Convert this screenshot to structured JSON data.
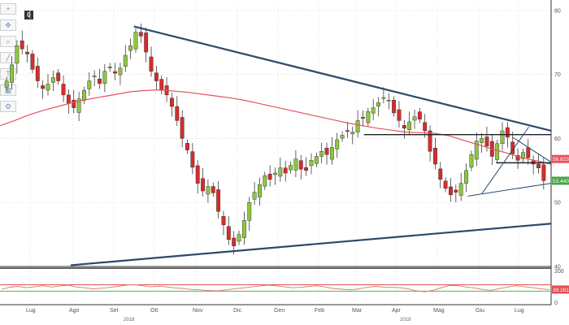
{
  "toolbar": {
    "tools": [
      "crosshair-icon",
      "pan-icon",
      "zoom-icon",
      "draw-icon",
      "text-icon",
      "grid-icon",
      "settings-icon"
    ],
    "badge": "0"
  },
  "chart_data": [
    {
      "type": "candlestick",
      "name": "main-price-chart",
      "x_ticks": [
        "Lug",
        "Ago",
        "Set",
        "Ott",
        "Nov",
        "Dic",
        "Gen",
        "Feb",
        "Mar",
        "Apr",
        "Mag",
        "Giu",
        "Lug"
      ],
      "year_labels": [
        "2018",
        "2019"
      ],
      "y_ticks": [
        40,
        50,
        60,
        70,
        80
      ],
      "ylim": [
        40,
        81
      ],
      "grid": true,
      "closes": [
        69.0,
        71.5,
        74.5,
        74.0,
        73.2,
        70.8,
        69.0,
        67.8,
        68.5,
        69.5,
        69.0,
        66.8,
        65.5,
        64.8,
        66.2,
        67.5,
        69.0,
        69.8,
        68.6,
        70.5,
        71.2,
        70.2,
        71.0,
        73.0,
        74.5,
        76.6,
        76.0,
        73.5,
        70.5,
        69.0,
        67.5,
        66.8,
        65.0,
        62.8,
        60.0,
        58.2,
        55.5,
        53.0,
        51.8,
        52.5,
        51.5,
        48.6,
        46.5,
        44.2,
        43.2,
        45.0,
        47.2,
        50.0,
        51.6,
        52.8,
        54.2,
        53.6,
        54.6,
        55.4,
        54.6,
        55.8,
        56.8,
        55.2,
        55.0,
        56.6,
        57.2,
        58.0,
        57.5,
        58.6,
        59.8,
        60.5,
        61.2,
        61.0,
        62.8,
        63.2,
        64.2,
        64.8,
        65.6,
        66.4,
        66.0,
        64.0,
        62.8,
        61.6,
        62.6,
        63.4,
        63.0,
        61.2,
        58.0,
        56.0,
        53.6,
        52.2,
        51.2,
        51.6,
        53.0,
        55.0,
        57.5,
        59.6,
        60.0,
        58.8,
        57.2,
        59.2,
        61.2,
        60.2,
        57.6,
        56.6,
        57.8,
        57.0,
        56.0,
        55.4,
        53.4
      ],
      "opens_offset_note": "",
      "ma_line": [
        62.0,
        62.8,
        63.7,
        64.4,
        65.0,
        65.6,
        66.1,
        66.5,
        66.9,
        67.3,
        67.5,
        67.6,
        67.4,
        67.2,
        66.9,
        66.6,
        66.3,
        65.9,
        65.4,
        64.9,
        64.4,
        63.9,
        63.4,
        62.9,
        62.4,
        62.0,
        61.6,
        61.3,
        61.0,
        60.9,
        60.8,
        60.4,
        59.7,
        59.0,
        58.3,
        57.7,
        57.0,
        56.5,
        56.0
      ],
      "ma_color": "#e8515f",
      "up_color": "#8dc63f",
      "down_color": "#d62c2c",
      "trendlines": {
        "upper_resistance": [
          [
            1,
            77.5
          ],
          [
            14,
            61.2
          ]
        ],
        "lower_support": [
          [
            1,
            40.2
          ],
          [
            14,
            46.7
          ]
        ],
        "horizontal": [
          [
            8,
            60.6
          ],
          [
            14,
            60.6
          ]
        ],
        "horizontal_2": [
          [
            11.4,
            56.2
          ],
          [
            14,
            56.2
          ]
        ],
        "small_support": [
          [
            11.0,
            51.0
          ],
          [
            14,
            53.0
          ]
        ],
        "channel_up": [
          [
            11.1,
            51.4
          ],
          [
            13.0,
            61.8
          ]
        ]
      },
      "current_prices": [
        {
          "label": "56.8233",
          "value": 56.8,
          "color": "#e8515f"
        },
        {
          "label": "53.4408",
          "value": 53.4,
          "color": "#47a447"
        }
      ]
    },
    {
      "type": "line",
      "name": "rsi-indicator",
      "y_ticks": [
        200,
        100,
        0
      ],
      "y_tick_labels": [
        "200",
        "",
        "0"
      ],
      "levels": {
        "upper": 110,
        "lower": 70
      },
      "values": [
        82,
        95,
        100,
        92,
        98,
        104,
        96,
        102,
        108,
        96,
        92,
        84,
        88,
        94,
        100,
        108,
        112,
        104,
        98,
        102,
        96,
        90,
        86,
        80,
        78,
        74,
        72,
        78,
        84,
        90,
        96,
        102,
        108,
        104,
        98,
        92,
        94,
        100,
        104,
        96,
        86,
        82,
        78,
        84,
        94,
        100,
        96,
        94,
        92,
        84,
        72,
        66,
        76,
        92,
        106,
        104,
        96,
        90,
        80,
        76,
        86,
        96,
        104,
        98,
        92,
        84,
        80
      ],
      "line_color": "#e07070",
      "current_value": {
        "label": "39.2814",
        "value": 80
      }
    }
  ]
}
